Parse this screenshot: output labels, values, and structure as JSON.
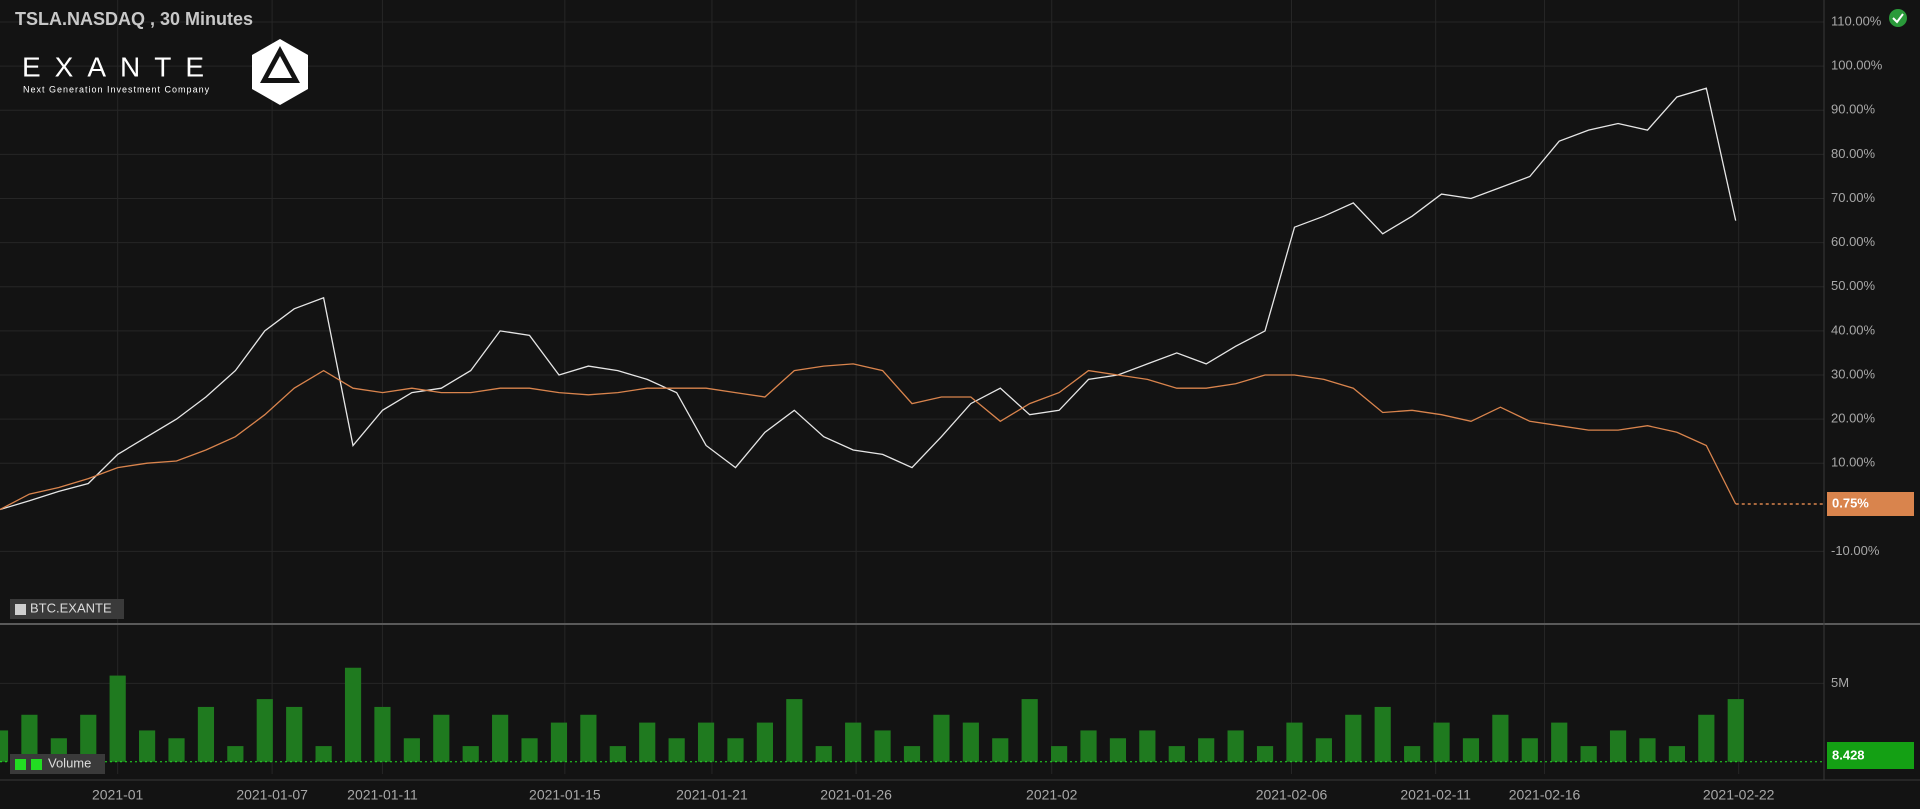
{
  "header": {
    "title": "TSLA.NASDAQ , 30 Minutes",
    "logo": "EXANTE",
    "tagline": "Next Generation Investment Company"
  },
  "chart_data": [
    {
      "type": "line",
      "xlim": [
        0,
        62
      ],
      "ylim": [
        -26,
        115
      ],
      "yticks": [
        {
          "value": -10,
          "label": "-10.00%"
        },
        {
          "value": 10,
          "label": "10.00%"
        },
        {
          "value": 20,
          "label": "20.00%"
        },
        {
          "value": 30,
          "label": "30.00%"
        },
        {
          "value": 40,
          "label": "40.00%"
        },
        {
          "value": 50,
          "label": "50.00%"
        },
        {
          "value": 60,
          "label": "60.00%"
        },
        {
          "value": 70,
          "label": "70.00%"
        },
        {
          "value": 80,
          "label": "80.00%"
        },
        {
          "value": 90,
          "label": "90.00%"
        },
        {
          "value": 100,
          "label": "100.00%"
        },
        {
          "value": 110,
          "label": "110.00%"
        }
      ],
      "grid": true,
      "series": [
        {
          "name": "BTC.EXANTE",
          "color": "#e6e6e6",
          "values": [
            -0.5,
            1.5,
            3.6,
            5.4,
            12,
            16,
            20,
            25,
            31,
            40,
            45,
            47.5,
            14,
            22,
            26,
            27,
            31,
            40,
            39,
            30,
            32,
            31,
            29,
            26,
            14,
            9,
            17,
            22,
            16,
            13,
            12,
            9,
            16,
            23.5,
            27,
            21,
            22,
            29,
            30,
            32.5,
            35,
            32.5,
            36.5,
            40,
            63.5,
            66,
            69,
            62,
            66,
            71,
            70,
            72.5,
            75,
            83,
            85.5,
            87,
            85.5,
            93,
            95,
            65
          ]
        },
        {
          "color": "#d9844d",
          "values": [
            -0.5,
            3,
            4.5,
            6.5,
            9,
            10,
            10.5,
            13,
            16,
            21,
            27,
            31,
            27,
            26,
            27,
            26,
            26,
            27,
            27,
            26,
            25.5,
            26,
            27,
            27,
            27,
            26,
            25,
            31,
            32,
            32.5,
            31,
            23.5,
            25,
            25,
            19.5,
            23.5,
            26,
            31,
            30,
            29,
            27,
            27,
            28,
            30,
            30,
            29,
            27,
            21.5,
            22,
            21,
            19.5,
            22.7,
            19.5,
            18.5,
            17.5,
            17.5,
            18.5,
            17,
            14,
            0.75
          ],
          "last_label": "0.75%"
        }
      ]
    },
    {
      "type": "bar",
      "name": "Volume",
      "color": "#1f7a1f",
      "xlim": [
        0,
        62
      ],
      "xticks": [
        {
          "value": 4,
          "label": "2021-01"
        },
        {
          "value": 9.25,
          "label": "2021-01-07"
        },
        {
          "value": 13,
          "label": "2021-01-11"
        },
        {
          "value": 19.2,
          "label": "2021-01-15"
        },
        {
          "value": 24.2,
          "label": "2021-01-21"
        },
        {
          "value": 29.1,
          "label": "2021-01-26"
        },
        {
          "value": 35.75,
          "label": "2021-02"
        },
        {
          "value": 43.9,
          "label": "2021-02-06"
        },
        {
          "value": 48.8,
          "label": "2021-02-11"
        },
        {
          "value": 52.5,
          "label": "2021-02-16"
        },
        {
          "value": 59.1,
          "label": "2021-02-22"
        }
      ],
      "ylim": [
        -780000,
        8600000
      ],
      "yticks": [
        {
          "value": 5000000,
          "label": "5M"
        }
      ],
      "values": [
        2000000,
        3000000,
        1500000,
        3000000,
        5500000,
        2000000,
        1500000,
        3500000,
        1000000,
        4000000,
        3500000,
        1000000,
        6000000,
        3500000,
        1500000,
        3000000,
        1000000,
        3000000,
        1500000,
        2500000,
        3000000,
        1000000,
        2500000,
        1500000,
        2500000,
        1500000,
        2500000,
        4000000,
        1000000,
        2500000,
        2000000,
        1000000,
        3000000,
        2500000,
        1500000,
        4000000,
        1000000,
        2000000,
        1500000,
        2000000,
        1000000,
        1500000,
        2000000,
        1000000,
        2500000,
        1500000,
        3000000,
        3500000,
        1000000,
        2500000,
        1500000,
        3000000,
        1500000,
        2500000,
        1000000,
        2000000,
        1500000,
        1000000,
        3000000,
        4000000
      ],
      "last_value": 8.428
    }
  ]
}
